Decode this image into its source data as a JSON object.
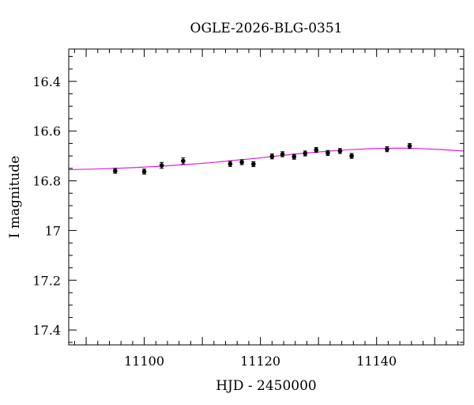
{
  "chart_data": {
    "type": "scatter",
    "title": "OGLE-2026-BLG-0351",
    "xlabel": "HJD - 2450000",
    "ylabel": "I magnitude",
    "xlim": [
      11087,
      11155
    ],
    "ylim": [
      17.46,
      16.27
    ],
    "y_inverted": true,
    "grid": false,
    "x_ticks": [
      11100,
      11120,
      11140
    ],
    "y_ticks": [
      16.4,
      16.6,
      16.8,
      17,
      17.2,
      17.4
    ],
    "x_tick_labels": [
      "11100",
      "11120",
      "11140"
    ],
    "y_tick_labels": [
      "16.4",
      "16.6",
      "16.8",
      "17",
      "17.2",
      "17.4"
    ],
    "x_minor_step": 2,
    "y_minor_step": 0.05,
    "series": [
      {
        "type": "errorbar",
        "color": "#000000",
        "points": [
          {
            "x": 11095.0,
            "y": 16.76,
            "err": 0.01
          },
          {
            "x": 11100.0,
            "y": 16.763,
            "err": 0.01
          },
          {
            "x": 11103.0,
            "y": 16.738,
            "err": 0.012
          },
          {
            "x": 11106.7,
            "y": 16.72,
            "err": 0.012
          },
          {
            "x": 11114.8,
            "y": 16.732,
            "err": 0.01
          },
          {
            "x": 11116.8,
            "y": 16.725,
            "err": 0.01
          },
          {
            "x": 11118.8,
            "y": 16.733,
            "err": 0.01
          },
          {
            "x": 11122.0,
            "y": 16.702,
            "err": 0.01
          },
          {
            "x": 11123.8,
            "y": 16.693,
            "err": 0.01
          },
          {
            "x": 11125.8,
            "y": 16.703,
            "err": 0.01
          },
          {
            "x": 11127.7,
            "y": 16.69,
            "err": 0.01
          },
          {
            "x": 11129.6,
            "y": 16.676,
            "err": 0.01
          },
          {
            "x": 11131.6,
            "y": 16.688,
            "err": 0.01
          },
          {
            "x": 11133.7,
            "y": 16.68,
            "err": 0.01
          },
          {
            "x": 11135.7,
            "y": 16.7,
            "err": 0.01
          },
          {
            "x": 11141.8,
            "y": 16.673,
            "err": 0.01
          },
          {
            "x": 11145.7,
            "y": 16.66,
            "err": 0.01
          }
        ]
      },
      {
        "type": "line",
        "color": "#e020e0",
        "x": [
          11087,
          11091,
          11095,
          11099,
          11103,
          11107,
          11111,
          11115,
          11119,
          11123,
          11127,
          11131,
          11135,
          11139,
          11143,
          11145,
          11147,
          11151,
          11155
        ],
        "y": [
          16.755,
          16.753,
          16.75,
          16.746,
          16.741,
          16.735,
          16.728,
          16.719,
          16.71,
          16.7,
          16.69,
          16.682,
          16.675,
          16.671,
          16.669,
          16.669,
          16.67,
          16.674,
          16.68
        ]
      }
    ]
  }
}
